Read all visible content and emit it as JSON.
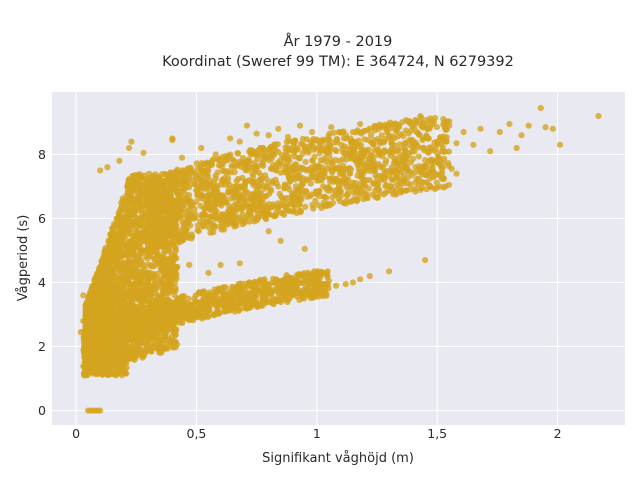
{
  "chart_data": {
    "type": "scatter",
    "title": "År 1979 - 2019",
    "subtitle": "Koordinat (Sweref 99 TM): E 364724, N 6279392",
    "xlabel": "Signifikant våghöjd (m)",
    "ylabel": "Vågperiod (s)",
    "xlim": [
      -0.1,
      2.28
    ],
    "ylim": [
      -0.45,
      9.95
    ],
    "x_ticks": [
      {
        "value": 0,
        "label": "0"
      },
      {
        "value": 0.5,
        "label": "0,5"
      },
      {
        "value": 1,
        "label": "1"
      },
      {
        "value": 1.5,
        "label": "1,5"
      },
      {
        "value": 2,
        "label": "2"
      }
    ],
    "y_ticks": [
      {
        "value": 0,
        "label": "0"
      },
      {
        "value": 2,
        "label": "2"
      },
      {
        "value": 4,
        "label": "4"
      },
      {
        "value": 6,
        "label": "6"
      },
      {
        "value": 8,
        "label": "8"
      }
    ],
    "grid": true,
    "legend": "none",
    "colors": {
      "marker": "#d4a41f",
      "plot_background": "#e9e9f1",
      "grid": "#ffffff",
      "text": "#2a2a2a"
    },
    "series": [
      {
        "points": [
          [
            2.17,
            9.2
          ],
          [
            1.93,
            9.45
          ],
          [
            1.98,
            8.8
          ],
          [
            1.95,
            8.85
          ],
          [
            2.01,
            8.3
          ],
          [
            1.88,
            8.9
          ],
          [
            1.85,
            8.6
          ],
          [
            1.83,
            8.2
          ],
          [
            1.8,
            8.95
          ],
          [
            1.76,
            8.7
          ],
          [
            1.72,
            8.1
          ],
          [
            1.68,
            8.8
          ],
          [
            1.65,
            8.3
          ],
          [
            1.61,
            8.7
          ],
          [
            1.58,
            8.35
          ],
          [
            1.55,
            8.9
          ],
          [
            1.53,
            9.0
          ],
          [
            1.5,
            8.4
          ],
          [
            1.47,
            8.85
          ],
          [
            1.43,
            9.2
          ],
          [
            1.4,
            8.2
          ],
          [
            1.37,
            8.75
          ],
          [
            1.34,
            8.9
          ],
          [
            1.31,
            8.35
          ],
          [
            1.27,
            8.6
          ],
          [
            1.24,
            8.75
          ],
          [
            1.2,
            8.1
          ],
          [
            1.18,
            8.95
          ],
          [
            1.14,
            8.5
          ],
          [
            1.1,
            8.7
          ],
          [
            1.06,
            8.85
          ],
          [
            1.02,
            8.3
          ],
          [
            0.98,
            8.7
          ],
          [
            0.93,
            8.9
          ],
          [
            0.88,
            8.55
          ],
          [
            0.84,
            8.8
          ],
          [
            0.8,
            8.6
          ],
          [
            0.75,
            8.65
          ],
          [
            0.71,
            8.9
          ],
          [
            0.68,
            8.4
          ],
          [
            0.64,
            8.5
          ],
          [
            0.58,
            8.0
          ],
          [
            0.52,
            8.2
          ],
          [
            0.44,
            7.9
          ],
          [
            0.4,
            8.5
          ],
          [
            1.58,
            7.4
          ],
          [
            1.56,
            7.55
          ],
          [
            1.5,
            7.75
          ],
          [
            1.47,
            7.25
          ],
          [
            1.44,
            7.5
          ],
          [
            1.41,
            7.6
          ],
          [
            1.36,
            7.1
          ],
          [
            1.33,
            7.3
          ],
          [
            1.29,
            7.05
          ],
          [
            1.25,
            6.95
          ],
          [
            1.22,
            7.2
          ],
          [
            1.18,
            6.8
          ],
          [
            1.45,
            4.7
          ],
          [
            1.3,
            4.35
          ],
          [
            1.22,
            4.2
          ],
          [
            1.18,
            4.1
          ],
          [
            1.15,
            4.0
          ],
          [
            1.12,
            3.95
          ],
          [
            1.08,
            3.9
          ],
          [
            1.05,
            4.05
          ],
          [
            1.01,
            3.8
          ],
          [
            0.95,
            5.05
          ],
          [
            0.85,
            5.3
          ],
          [
            0.8,
            5.6
          ],
          [
            0.68,
            4.6
          ],
          [
            0.6,
            4.55
          ],
          [
            0.55,
            4.3
          ],
          [
            0.47,
            4.55
          ],
          [
            0.28,
            8.05
          ],
          [
            0.22,
            8.2
          ],
          [
            0.18,
            7.8
          ],
          [
            0.13,
            7.6
          ],
          [
            0.1,
            7.5
          ],
          [
            0.23,
            8.4
          ],
          [
            0.4,
            8.45
          ],
          [
            0.05,
            0.0
          ],
          [
            0.06,
            0.0
          ],
          [
            0.07,
            0.0
          ],
          [
            0.08,
            0.0
          ],
          [
            0.09,
            0.0
          ],
          [
            0.1,
            0.0
          ],
          [
            0.06,
            1.2
          ],
          [
            0.05,
            1.5
          ],
          [
            0.02,
            2.45
          ],
          [
            0.03,
            2.8
          ],
          [
            0.04,
            3.3
          ],
          [
            0.03,
            3.6
          ]
        ]
      }
    ]
  }
}
